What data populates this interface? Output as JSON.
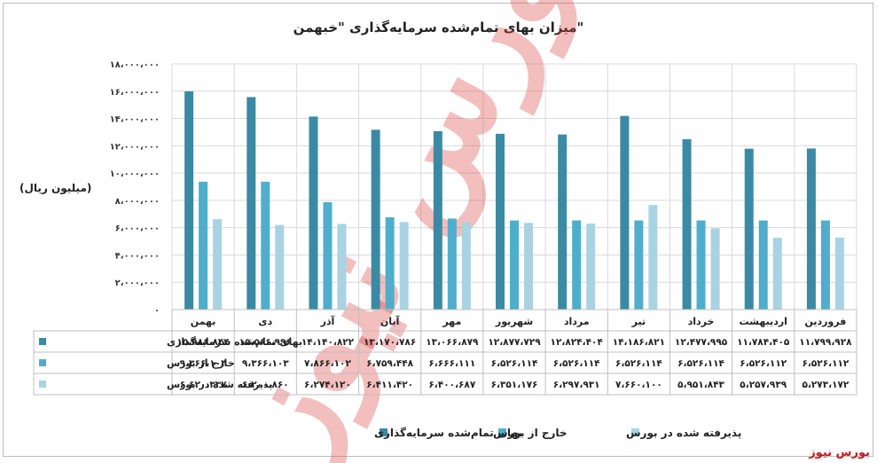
{
  "chart_data": {
    "type": "bar",
    "title": "\"میزان بهای تمام‌شده سرمایه‌گذاری \"خبهمن",
    "ylabel": "(میلیون ریال)",
    "ylim": [
      0,
      18000000
    ],
    "yticks": [
      "۰",
      "۲،۰۰۰،۰۰۰",
      "۴،۰۰۰،۰۰۰",
      "۶،۰۰۰،۰۰۰",
      "۸،۰۰۰،۰۰۰",
      "۱۰،۰۰۰،۰۰۰",
      "۱۲،۰۰۰،۰۰۰",
      "۱۴،۰۰۰،۰۰۰",
      "۱۶،۰۰۰،۰۰۰",
      "۱۸،۰۰۰،۰۰۰"
    ],
    "categories": [
      "فروردین",
      "اردیبهشت",
      "خرداد",
      "تیر",
      "مرداد",
      "شهریور",
      "مهر",
      "آبان",
      "آذر",
      "دی",
      "بهمن"
    ],
    "grid": true,
    "legend_position": "bottom",
    "series": [
      {
        "name": "بهای تمام‌شده سرمایه‌گذاری",
        "color": "#3b8aa4",
        "values": [
          11799928,
          11784405,
          12477995,
          14186821,
          12824404,
          12877729,
          13066879,
          13170786,
          14140822,
          15566996,
          15986844
        ],
        "labels": [
          "۱۱،۷۹۹،۹۲۸",
          "۱۱،۷۸۴،۴۰۵",
          "۱۲،۴۷۷،۹۹۵",
          "۱۴،۱۸۶،۸۲۱",
          "۱۲،۸۲۴،۴۰۴",
          "۱۲،۸۷۷،۷۲۹",
          "۱۳،۰۶۶،۸۷۹",
          "۱۳،۱۷۰،۷۸۶",
          "۱۴،۱۴۰،۸۲۲",
          "۱۵،۵۶۶،۹۹۶",
          "۱۵،۹۸۶،۸۴۴"
        ]
      },
      {
        "name": "خارج از بورس",
        "color": "#4eaecb",
        "values": [
          6526112,
          6526112,
          6526114,
          6526114,
          6526114,
          6526114,
          6666111,
          6759448,
          7866102,
          9366103,
          9366103
        ],
        "labels": [
          "۶،۵۲۶،۱۱۲",
          "۶،۵۲۶،۱۱۲",
          "۶،۵۲۶،۱۱۴",
          "۶،۵۲۶،۱۱۴",
          "۶،۵۲۶،۱۱۴",
          "۶،۵۲۶،۱۱۴",
          "۶،۶۶۶،۱۱۱",
          "۶،۷۵۹،۴۴۸",
          "۷،۸۶۶،۱۰۲",
          "۹،۳۶۶،۱۰۳",
          "۹،۳۶۶،۱۰۳"
        ]
      },
      {
        "name": "پذیرفته شده در بورس",
        "color": "#a9d3e3",
        "values": [
          5273172,
          5257939,
          5951843,
          7660100,
          6297931,
          6351176,
          6400687,
          6411420,
          6274120,
          6200860,
          6620337
        ],
        "labels": [
          "۵،۲۷۳،۱۷۲",
          "۵،۲۵۷،۹۳۹",
          "۵،۹۵۱،۸۴۳",
          "۷،۶۶۰،۱۰۰",
          "۶،۲۹۷،۹۳۱",
          "۶،۳۵۱،۱۷۶",
          "۶،۴۰۰،۶۸۷",
          "۶،۴۱۱،۴۲۰",
          "۶،۲۷۴،۱۲۰",
          "۶،۲۰۰،۸۶۰",
          "۶،۶۲۰،۳۳۷"
        ]
      }
    ]
  },
  "brand": "بورس نیوز",
  "watermark": "بورس نیوز"
}
